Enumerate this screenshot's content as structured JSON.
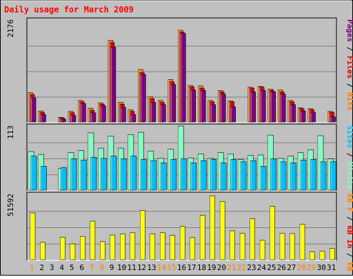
{
  "title": "Daily usage for March 2009",
  "colors": {
    "background": "#C0C0C0",
    "title": "#FF0000",
    "hits": "#FF8000",
    "files": "#E00000",
    "pages": "#800080",
    "visits": "#80FFC0",
    "sites": "#00C0FF",
    "kbin": "#FFFF00",
    "kbout": "#FF8000",
    "weekend_label": "#FF8000",
    "weekday_label": "#000000"
  },
  "panels": {
    "top": {
      "ymax_label": "2176",
      "legend": [
        "Pages",
        "Files",
        "Hits"
      ],
      "legend_separator": " / "
    },
    "middle": {
      "ymax_label": "113",
      "legend": [
        "Sites",
        "Visits"
      ],
      "legend_separator": " / "
    },
    "bottom": {
      "ymax_label": "51592",
      "legend": [
        "kB In",
        "kB Out"
      ],
      "legend_display": [
        "kB F",
        "kB In",
        "kB Out"
      ],
      "legend_separator": " / "
    }
  },
  "chart_data": [
    {
      "type": "bar",
      "title": "Daily usage for March 2009",
      "categories": [
        "1",
        "2",
        "3",
        "4",
        "5",
        "6",
        "7",
        "8",
        "9",
        "10",
        "11",
        "12",
        "13",
        "14",
        "15",
        "16",
        "17",
        "18",
        "19",
        "20",
        "21",
        "22",
        "23",
        "24",
        "25",
        "26",
        "27",
        "28",
        "29",
        "30",
        "31"
      ],
      "weekend_days": [
        "1",
        "7",
        "8",
        "14",
        "15",
        "21",
        "22",
        "28",
        "29"
      ],
      "ylim": [
        0,
        2176
      ],
      "series": [
        {
          "name": "Hits",
          "values": [
            640,
            240,
            0,
            100,
            230,
            470,
            300,
            420,
            1790,
            430,
            270,
            1150,
            550,
            470,
            930,
            2010,
            800,
            790,
            470,
            690,
            460,
            0,
            760,
            780,
            720,
            700,
            470,
            310,
            290,
            0,
            230
          ]
        },
        {
          "name": "Files",
          "values": [
            600,
            210,
            0,
            90,
            200,
            440,
            250,
            390,
            1740,
            390,
            230,
            1080,
            510,
            430,
            880,
            1970,
            770,
            740,
            440,
            660,
            440,
            0,
            740,
            760,
            690,
            660,
            440,
            290,
            270,
            0,
            210
          ]
        },
        {
          "name": "Pages",
          "values": [
            530,
            160,
            0,
            60,
            140,
            400,
            200,
            350,
            1640,
            320,
            160,
            1040,
            430,
            380,
            820,
            1940,
            700,
            690,
            380,
            610,
            330,
            0,
            660,
            690,
            660,
            610,
            380,
            240,
            210,
            0,
            110
          ]
        }
      ]
    },
    {
      "type": "bar",
      "categories": [
        "1",
        "2",
        "3",
        "4",
        "5",
        "6",
        "7",
        "8",
        "9",
        "10",
        "11",
        "12",
        "13",
        "14",
        "15",
        "16",
        "17",
        "18",
        "19",
        "20",
        "21",
        "22",
        "23",
        "24",
        "25",
        "26",
        "27",
        "28",
        "29",
        "30",
        "31"
      ],
      "ylim": [
        0,
        113
      ],
      "series": [
        {
          "name": "Visits",
          "values": [
            68,
            63,
            0,
            38,
            66,
            70,
            101,
            74,
            95,
            74,
            98,
            102,
            69,
            56,
            72,
            113,
            57,
            64,
            56,
            66,
            64,
            54,
            61,
            62,
            97,
            56,
            60,
            66,
            71,
            96,
            55
          ]
        },
        {
          "name": "Sites",
          "values": [
            60,
            42,
            0,
            40,
            55,
            53,
            58,
            56,
            60,
            55,
            60,
            54,
            52,
            48,
            54,
            55,
            48,
            52,
            54,
            48,
            54,
            50,
            52,
            42,
            55,
            50,
            48,
            53,
            54,
            50,
            50
          ]
        }
      ]
    },
    {
      "type": "bar",
      "categories": [
        "1",
        "2",
        "3",
        "4",
        "5",
        "6",
        "7",
        "8",
        "9",
        "10",
        "11",
        "12",
        "13",
        "14",
        "15",
        "16",
        "17",
        "18",
        "19",
        "20",
        "21",
        "22",
        "23",
        "24",
        "25",
        "26",
        "27",
        "28",
        "29",
        "30",
        "31"
      ],
      "ylim": [
        0,
        51592
      ],
      "series": [
        {
          "name": "kB In",
          "values": [
            0,
            0,
            0,
            0,
            0,
            0,
            0,
            0,
            0,
            0,
            0,
            0,
            0,
            0,
            0,
            0,
            0,
            0,
            0,
            0,
            0,
            0,
            0,
            0,
            0,
            0,
            0,
            0,
            0,
            0,
            0
          ]
        },
        {
          "name": "kB Out",
          "values": [
            36900,
            13700,
            0,
            17800,
            12500,
            18400,
            30400,
            14300,
            19500,
            20400,
            21300,
            38800,
            20400,
            21300,
            19300,
            26200,
            17500,
            35100,
            50400,
            46000,
            22800,
            20700,
            32300,
            15300,
            42000,
            20700,
            20600,
            28000,
            6200,
            6800,
            8900
          ]
        }
      ]
    }
  ]
}
